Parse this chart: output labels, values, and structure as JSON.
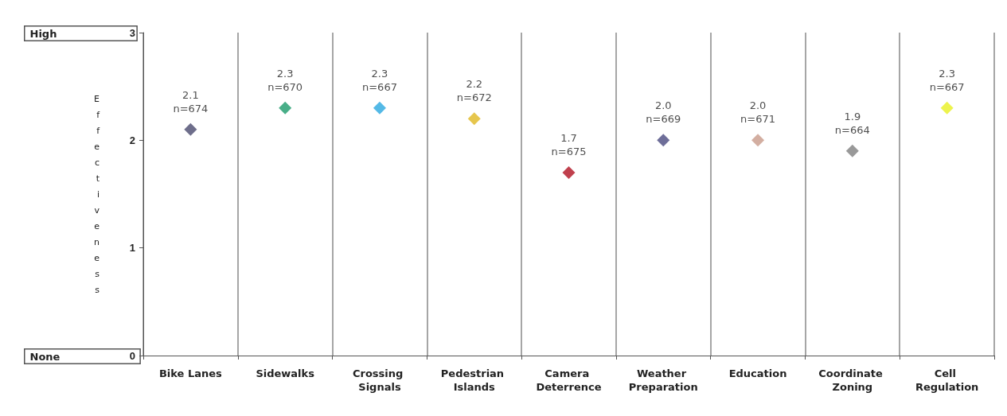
{
  "chart_data": {
    "type": "scatter",
    "ylabel": "Effectiveness",
    "categories": [
      "Bike Lanes",
      "Sidewalks",
      "Crossing Signals",
      "Pedestrian Islands",
      "Camera Deterrence",
      "Weather Preparation",
      "Education",
      "Coordinate Zoning",
      "Cell Regulation"
    ],
    "values": [
      2.1,
      2.3,
      2.3,
      2.2,
      1.7,
      2.0,
      2.0,
      1.9,
      2.3
    ],
    "value_labels": [
      "2.1\nn=674",
      "2.3\nn=670",
      "2.3\nn=667",
      "2.2\nn=672",
      "1.7\nn=675",
      "2.0\nn=669",
      "2.0\nn=671",
      "1.9\nn=664",
      "2.3\nn=667"
    ],
    "colors": [
      "#4a4a6e",
      "#1a9a6a",
      "#29a8e0",
      "#e0b820",
      "#b01020",
      "#4a4a80",
      "#c89a8a",
      "#808080",
      "#e8f020"
    ],
    "ylim": [
      0,
      3
    ],
    "yticks": [
      0,
      1,
      2,
      3
    ],
    "grid": "x",
    "marker": "diamond",
    "annotations": [
      "High",
      "None"
    ]
  }
}
